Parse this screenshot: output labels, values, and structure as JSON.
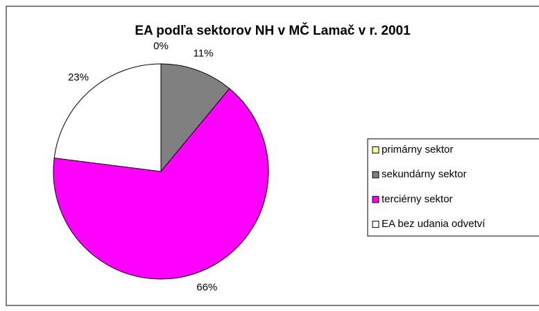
{
  "chart_data": {
    "type": "pie",
    "title": "EA podľa sektorov NH v MČ Lamač v r. 2001",
    "categories": [
      "primárny sektor",
      "sekundárny sektor",
      "terciérny sektor",
      "EA bez udania odvetví"
    ],
    "values": [
      0,
      11,
      66,
      23
    ],
    "colors": [
      "#ffff99",
      "#808080",
      "#ff00ff",
      "#ffffff"
    ],
    "legend": "right"
  }
}
